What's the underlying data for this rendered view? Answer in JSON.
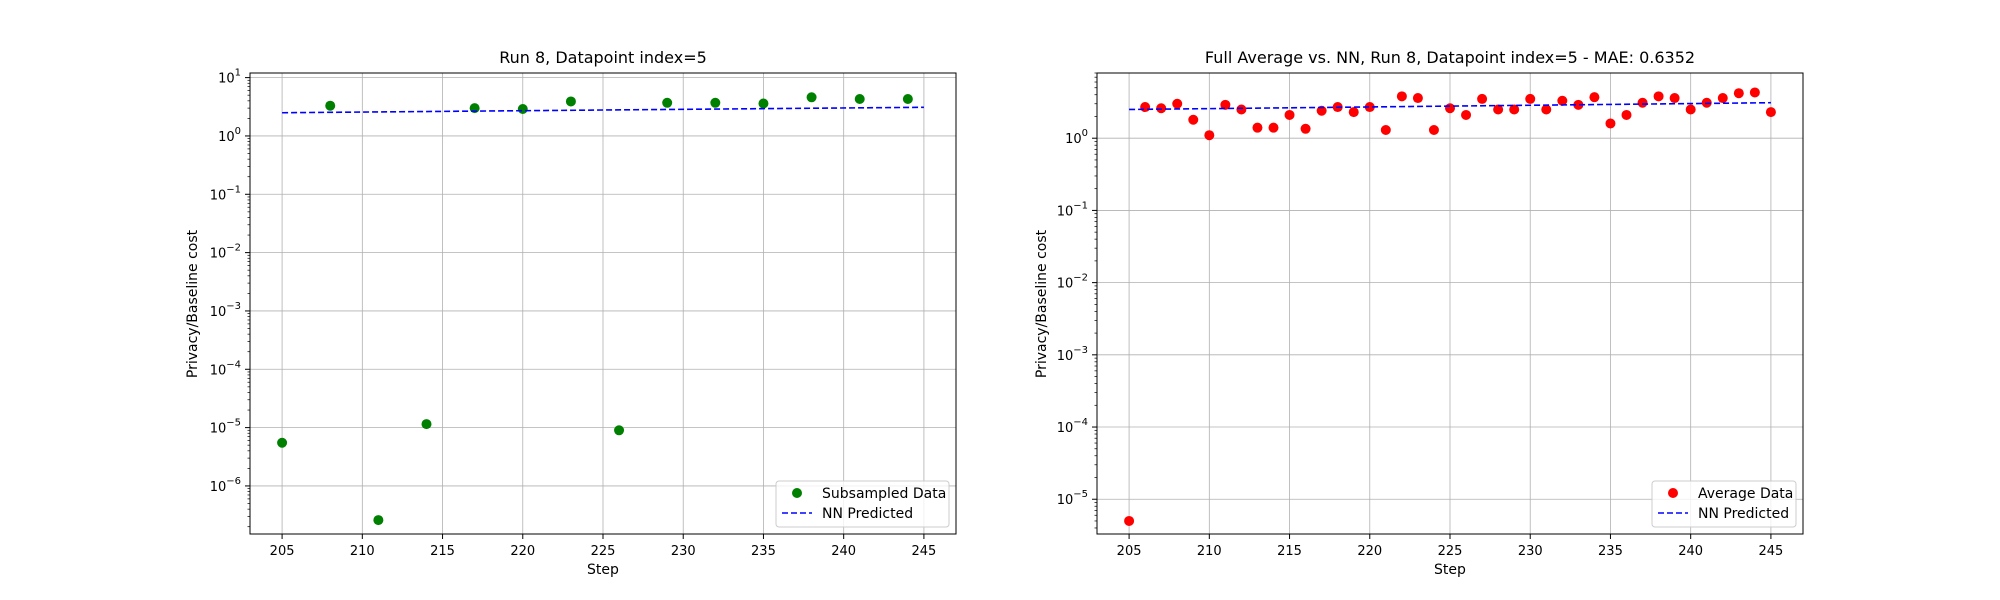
{
  "chart_data": [
    {
      "type": "scatter",
      "title": "Run 8, Datapoint index=5",
      "xlabel": "Step",
      "ylabel": "Privacy/Baseline cost",
      "yscale": "log",
      "xlim": [
        203,
        247
      ],
      "ylim": [
        1.5e-07,
        12
      ],
      "xticks": [
        205,
        210,
        215,
        220,
        225,
        230,
        235,
        240,
        245
      ],
      "yticks": [
        1e-06,
        1e-05,
        0.0001,
        0.001,
        0.01,
        0.1,
        1,
        10
      ],
      "ytick_labels": [
        {
          "base": "10",
          "exp": "−6"
        },
        {
          "base": "10",
          "exp": "−5"
        },
        {
          "base": "10",
          "exp": "−4"
        },
        {
          "base": "10",
          "exp": "−3"
        },
        {
          "base": "10",
          "exp": "−2"
        },
        {
          "base": "10",
          "exp": "−1"
        },
        {
          "base": "10",
          "exp": "0"
        },
        {
          "base": "10",
          "exp": "1"
        }
      ],
      "grid": true,
      "legend_position": "lower-right",
      "series": [
        {
          "name": "Subsampled Data",
          "kind": "scatter",
          "color": "#008000",
          "x": [
            205,
            208,
            211,
            214,
            217,
            220,
            223,
            226,
            229,
            232,
            235,
            238,
            241,
            244
          ],
          "y": [
            5.5e-06,
            3.3,
            2.6e-07,
            1.15e-05,
            3.0,
            2.9,
            3.9,
            9e-06,
            3.7,
            3.7,
            3.6,
            4.6,
            4.3,
            4.3
          ]
        },
        {
          "name": "NN Predicted",
          "kind": "dashed-line",
          "color": "#0000ff",
          "x": [
            205,
            245
          ],
          "y": [
            2.5,
            3.1
          ]
        }
      ]
    },
    {
      "type": "scatter",
      "title": "Full Average vs. NN, Run 8, Datapoint index=5 - MAE: 0.6352",
      "xlabel": "Step",
      "ylabel": "Privacy/Baseline cost",
      "yscale": "log",
      "xlim": [
        203,
        247
      ],
      "ylim": [
        3.3e-06,
        8
      ],
      "xticks": [
        205,
        210,
        215,
        220,
        225,
        230,
        235,
        240,
        245
      ],
      "yticks": [
        1e-05,
        0.0001,
        0.001,
        0.01,
        0.1,
        1
      ],
      "ytick_labels": [
        {
          "base": "10",
          "exp": "−5"
        },
        {
          "base": "10",
          "exp": "−4"
        },
        {
          "base": "10",
          "exp": "−3"
        },
        {
          "base": "10",
          "exp": "−2"
        },
        {
          "base": "10",
          "exp": "−1"
        },
        {
          "base": "10",
          "exp": "0"
        }
      ],
      "grid": true,
      "legend_position": "lower-right",
      "series": [
        {
          "name": "Average Data",
          "kind": "scatter",
          "color": "#ff0000",
          "x": [
            205,
            206,
            207,
            208,
            209,
            210,
            211,
            212,
            213,
            214,
            215,
            216,
            217,
            218,
            219,
            220,
            221,
            222,
            223,
            224,
            225,
            226,
            227,
            228,
            229,
            230,
            231,
            232,
            233,
            234,
            235,
            236,
            237,
            238,
            239,
            240,
            241,
            242,
            243,
            244,
            245
          ],
          "y": [
            5e-06,
            2.7,
            2.6,
            3.0,
            1.8,
            1.1,
            2.9,
            2.5,
            1.4,
            1.4,
            2.1,
            1.35,
            2.4,
            2.7,
            2.3,
            2.7,
            1.3,
            3.8,
            3.6,
            1.3,
            2.6,
            2.1,
            3.5,
            2.5,
            2.5,
            3.5,
            2.5,
            3.3,
            2.9,
            3.7,
            1.6,
            2.1,
            3.1,
            3.8,
            3.6,
            2.5,
            3.1,
            3.6,
            4.2,
            4.3,
            2.3
          ]
        },
        {
          "name": "NN Predicted",
          "kind": "dashed-line",
          "color": "#0000ff",
          "x": [
            205,
            245
          ],
          "y": [
            2.5,
            3.1
          ]
        }
      ]
    }
  ]
}
